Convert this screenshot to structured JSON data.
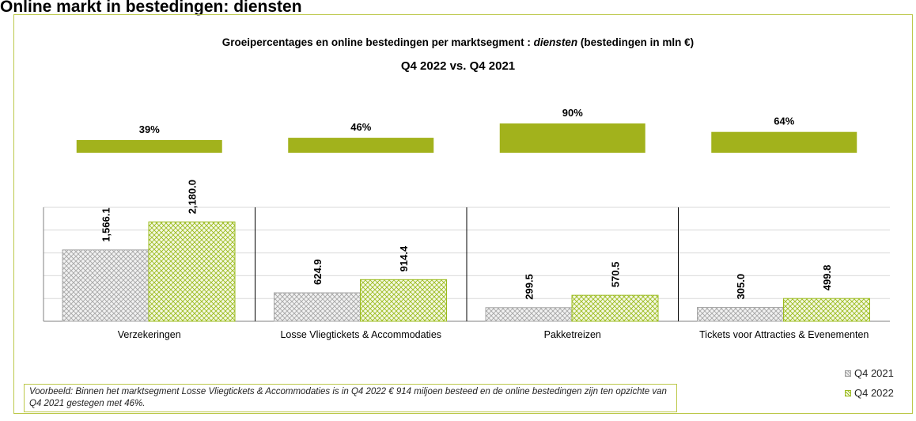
{
  "page_title": "Online markt in bestedingen: diensten",
  "chart_data": {
    "type": "bar",
    "title_part1": "Groeipercentages en online bestedingen per marktsegment : ",
    "title_italic": "diensten",
    "title_part2": " (bestedingen in mln €)",
    "subtitle": "Q4 2022 vs. Q4 2021",
    "categories": [
      "Verzekeringen",
      "Losse Vliegtickets & Accommodaties",
      "Pakketreizen",
      "Tickets voor Attracties & Evenementen"
    ],
    "series": [
      {
        "name": "Q4 2021",
        "values": [
          1566.1,
          624.9,
          299.5,
          305.0
        ],
        "labels": [
          "1,566.1",
          "624.9",
          "299.5",
          "305.0"
        ],
        "color": "#a6a6a6"
      },
      {
        "name": "Q4 2022",
        "values": [
          2180.0,
          914.4,
          570.5,
          499.8
        ],
        "labels": [
          "2,180.0",
          "914.4",
          "570.5",
          "499.8"
        ],
        "color": "#9bbb1f"
      }
    ],
    "growth": {
      "values": [
        39,
        46,
        90,
        64
      ],
      "labels": [
        "39%",
        "46%",
        "90%",
        "64%"
      ],
      "color": "#a2b21c"
    },
    "ylim": [
      0,
      2500
    ],
    "grid": true,
    "legend_position": "bottom-right"
  },
  "note": "Voorbeeld: Binnen het marktsegment Losse Vliegtickets & Accommodaties is in Q4 2022 € 914 miljoen besteed en de online bestedingen zijn ten opzichte van Q4 2021 gestegen met 46%."
}
